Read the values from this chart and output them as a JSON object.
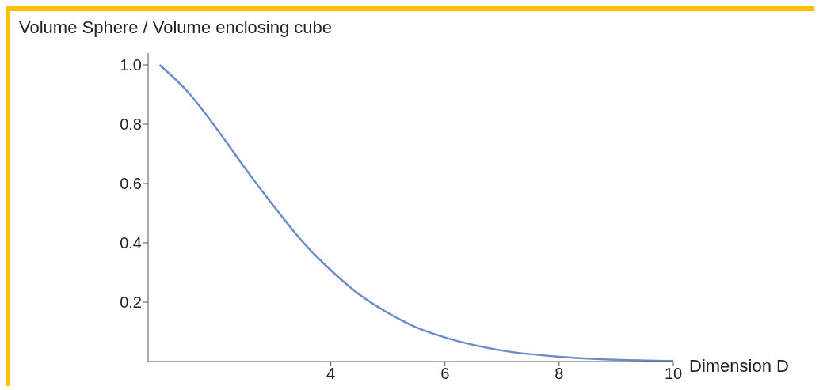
{
  "chart_data": {
    "type": "line",
    "ylabel": "Volume Sphere / Volume enclosing cube",
    "xlabel": "Dimension D",
    "x": [
      1,
      1.5,
      2,
      2.5,
      3,
      3.5,
      4,
      4.5,
      5,
      5.5,
      6,
      7,
      8,
      9,
      10
    ],
    "series": [
      {
        "color": "#6a8cc8",
        "values": [
          1,
          0.908,
          0.785,
          0.651,
          0.524,
          0.405,
          0.308,
          0.226,
          0.164,
          0.115,
          0.081,
          0.037,
          0.016,
          0.006,
          0.002
        ]
      }
    ],
    "xlim": [
      0.8,
      10
    ],
    "xticks": [
      4,
      6,
      8,
      10
    ],
    "ylim": [
      0,
      1.04
    ],
    "yticks": [
      0.2,
      0.4,
      0.6,
      {
        "value": 1,
        "label": "1.0"
      },
      0.8
    ],
    "grid": false,
    "legend": false,
    "marker": "none",
    "line_style": "solid"
  }
}
